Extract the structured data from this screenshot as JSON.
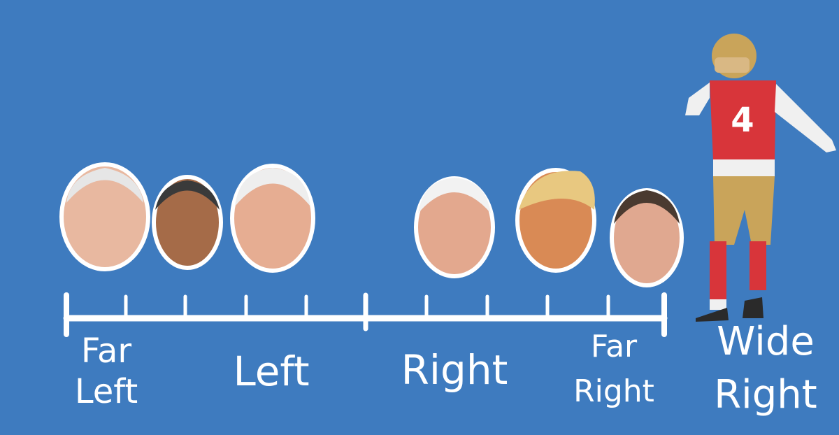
{
  "labels": [
    {
      "lines": [
        "Far",
        "Left"
      ]
    },
    {
      "lines": [
        "Left"
      ]
    },
    {
      "lines": [
        "Right"
      ]
    },
    {
      "lines": [
        "Far",
        "Right"
      ]
    },
    {
      "lines": [
        "Wide",
        "Right"
      ]
    }
  ]
}
